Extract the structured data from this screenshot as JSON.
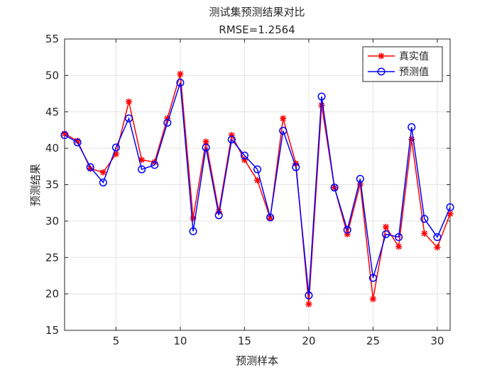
{
  "chart_data": {
    "type": "line",
    "title": "测试集预测结果对比",
    "subtitle": "RMSE=1.2564",
    "xlabel": "预测样本",
    "ylabel": "预测结果",
    "xlim": [
      1,
      31
    ],
    "ylim": [
      15,
      55
    ],
    "xticks": [
      5,
      10,
      15,
      20,
      25,
      30
    ],
    "yticks": [
      15,
      20,
      25,
      30,
      35,
      40,
      45,
      50,
      55
    ],
    "grid": true,
    "legend_position": "top-right",
    "x": [
      1,
      2,
      3,
      4,
      5,
      6,
      7,
      8,
      9,
      10,
      11,
      12,
      13,
      14,
      15,
      16,
      17,
      18,
      19,
      20,
      21,
      22,
      23,
      24,
      25,
      26,
      27,
      28,
      29,
      30,
      31
    ],
    "series": [
      {
        "name": "真实值",
        "color": "#ff0000",
        "marker": "asterisk",
        "values": [
          42.0,
          41.0,
          37.2,
          36.7,
          39.2,
          46.4,
          38.4,
          38.1,
          44.1,
          50.2,
          30.4,
          40.9,
          31.3,
          41.8,
          38.4,
          35.6,
          30.4,
          44.1,
          37.9,
          18.6,
          45.9,
          34.6,
          28.2,
          35.1,
          19.3,
          29.2,
          26.5,
          41.2,
          28.3,
          26.4,
          31.0
        ]
      },
      {
        "name": "预测值",
        "color": "#0000ff",
        "marker": "circle",
        "values": [
          41.8,
          40.8,
          37.4,
          35.3,
          40.1,
          44.1,
          37.1,
          37.7,
          43.5,
          49.0,
          28.6,
          40.1,
          30.8,
          41.2,
          39.0,
          37.1,
          30.5,
          42.4,
          37.4,
          19.8,
          47.1,
          34.6,
          28.8,
          35.8,
          22.2,
          28.2,
          27.8,
          42.9,
          30.3,
          27.8,
          31.9
        ]
      }
    ]
  }
}
